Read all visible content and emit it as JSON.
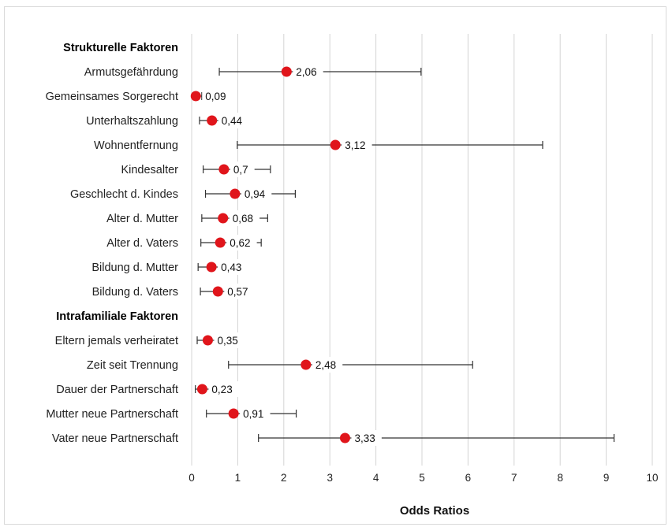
{
  "chart_data": {
    "type": "scatter",
    "title": "",
    "xlabel": "Odds Ratios",
    "ylabel": "",
    "xlim": [
      0,
      10
    ],
    "x_ticks": [
      "0",
      "1",
      "2",
      "3",
      "4",
      "5",
      "6",
      "7",
      "8",
      "9",
      "10"
    ],
    "grid": "vertical",
    "marker_color": "#e0151b",
    "rows": [
      {
        "kind": "group",
        "label": "Strukturelle Faktoren"
      },
      {
        "kind": "item",
        "label": "Armutsgefährdung",
        "value": 2.06,
        "value_label": "2,06",
        "ci": [
          0.6,
          4.98
        ]
      },
      {
        "kind": "item",
        "label": "Gemeinsames Sorgerecht",
        "value": 0.09,
        "value_label": "0,09",
        "ci": [
          0.03,
          0.22
        ]
      },
      {
        "kind": "item",
        "label": "Unterhaltszahlung",
        "value": 0.44,
        "value_label": "0,44",
        "ci": [
          0.17,
          0.62
        ]
      },
      {
        "kind": "item",
        "label": "Wohnentfernung",
        "value": 3.12,
        "value_label": "3,12",
        "ci": [
          0.99,
          7.62
        ]
      },
      {
        "kind": "item",
        "label": "Kindesalter",
        "value": 0.7,
        "value_label": "0,7",
        "ci": [
          0.25,
          1.71
        ]
      },
      {
        "kind": "item",
        "label": "Geschlecht d. Kindes",
        "value": 0.94,
        "value_label": "0,94",
        "ci": [
          0.3,
          2.25
        ]
      },
      {
        "kind": "item",
        "label": "Alter d. Mutter",
        "value": 0.68,
        "value_label": "0,68",
        "ci": [
          0.22,
          1.65
        ]
      },
      {
        "kind": "item",
        "label": "Alter d. Vaters",
        "value": 0.62,
        "value_label": "0,62",
        "ci": [
          0.2,
          1.51
        ]
      },
      {
        "kind": "item",
        "label": "Bildung d. Mutter",
        "value": 0.43,
        "value_label": "0,43",
        "ci": [
          0.14,
          0.72
        ]
      },
      {
        "kind": "item",
        "label": "Bildung d. Vaters",
        "value": 0.57,
        "value_label": "0,57",
        "ci": [
          0.19,
          0.92
        ]
      },
      {
        "kind": "group",
        "label": "Intrafamiliale Faktoren"
      },
      {
        "kind": "item",
        "label": "Eltern jemals verheiratet",
        "value": 0.35,
        "value_label": "0,35",
        "ci": [
          0.12,
          0.55
        ]
      },
      {
        "kind": "item",
        "label": "Zeit seit Trennung",
        "value": 2.48,
        "value_label": "2,48",
        "ci": [
          0.8,
          6.1
        ]
      },
      {
        "kind": "item",
        "label": "Dauer der Partnerschaft",
        "value": 0.23,
        "value_label": "0,23",
        "ci": [
          0.08,
          0.38
        ]
      },
      {
        "kind": "item",
        "label": "Mutter neue Partnerschaft",
        "value": 0.91,
        "value_label": "0,91",
        "ci": [
          0.32,
          2.27
        ]
      },
      {
        "kind": "item",
        "label": "Vater neue Partnerschaft",
        "value": 3.33,
        "value_label": "3,33",
        "ci": [
          1.45,
          9.17
        ]
      }
    ]
  }
}
